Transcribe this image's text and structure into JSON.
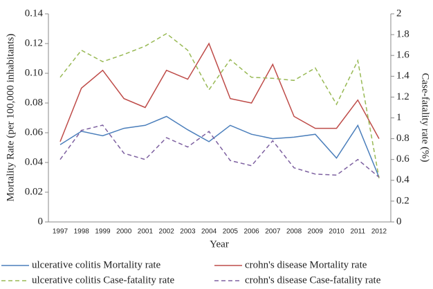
{
  "chart_data": {
    "type": "line",
    "x_label": "Year",
    "y_label": "Mortality Rate (per 100,000 inhabitants)",
    "y2_label": "Case-fatality rate (%)",
    "categories": [
      "1997",
      "1998",
      "1999",
      "2000",
      "2001",
      "2002",
      "2003",
      "2004",
      "2005",
      "2006",
      "2007",
      "2008",
      "2009",
      "2010",
      "2011",
      "2012"
    ],
    "ylim": [
      0,
      0.14
    ],
    "yticks": [
      0,
      0.02,
      0.04,
      0.06,
      0.08,
      {
        "value": 0.1,
        "label": "0.10"
      },
      0.12,
      0.14
    ],
    "y2lim": [
      0,
      2
    ],
    "y2ticks": [
      0,
      0.2,
      0.4,
      0.6,
      0.8,
      1,
      1.2,
      1.4,
      1.6,
      1.8,
      2
    ],
    "grid": false,
    "series": [
      {
        "name": "ulcerative colitis Mortality rate",
        "color": "#4a7ebb",
        "dash": "solid",
        "values": [
          0.052,
          0.061,
          0.058,
          0.063,
          0.065,
          0.071,
          0.062,
          0.054,
          0.065,
          0.059,
          0.056,
          0.057,
          0.059,
          0.043,
          0.065,
          0.03
        ]
      },
      {
        "name": "crohn's disease Mortality rate",
        "color": "#be4b48",
        "dash": "solid",
        "values": [
          0.054,
          0.09,
          0.102,
          0.083,
          0.077,
          0.102,
          0.096,
          0.12,
          0.083,
          0.08,
          0.106,
          0.071,
          0.063,
          0.063,
          0.082,
          0.056
        ]
      },
      {
        "name": "ulcerative colitis Case-fatality rate",
        "color": "#98b954",
        "dash": "dashed",
        "axis": "y2",
        "values": [
          1.39,
          1.65,
          1.54,
          1.61,
          1.69,
          1.81,
          1.65,
          1.27,
          1.56,
          1.39,
          1.38,
          1.36,
          1.48,
          1.13,
          1.55,
          0.42
        ]
      },
      {
        "name": "crohn's disease Case-fatality rate",
        "color": "#7d60a0",
        "dash": "dashed",
        "axis": "y2",
        "values": [
          0.6,
          0.88,
          0.93,
          0.66,
          0.6,
          0.81,
          0.72,
          0.87,
          0.59,
          0.54,
          0.78,
          0.52,
          0.46,
          0.45,
          0.6,
          0.43
        ]
      }
    ]
  }
}
